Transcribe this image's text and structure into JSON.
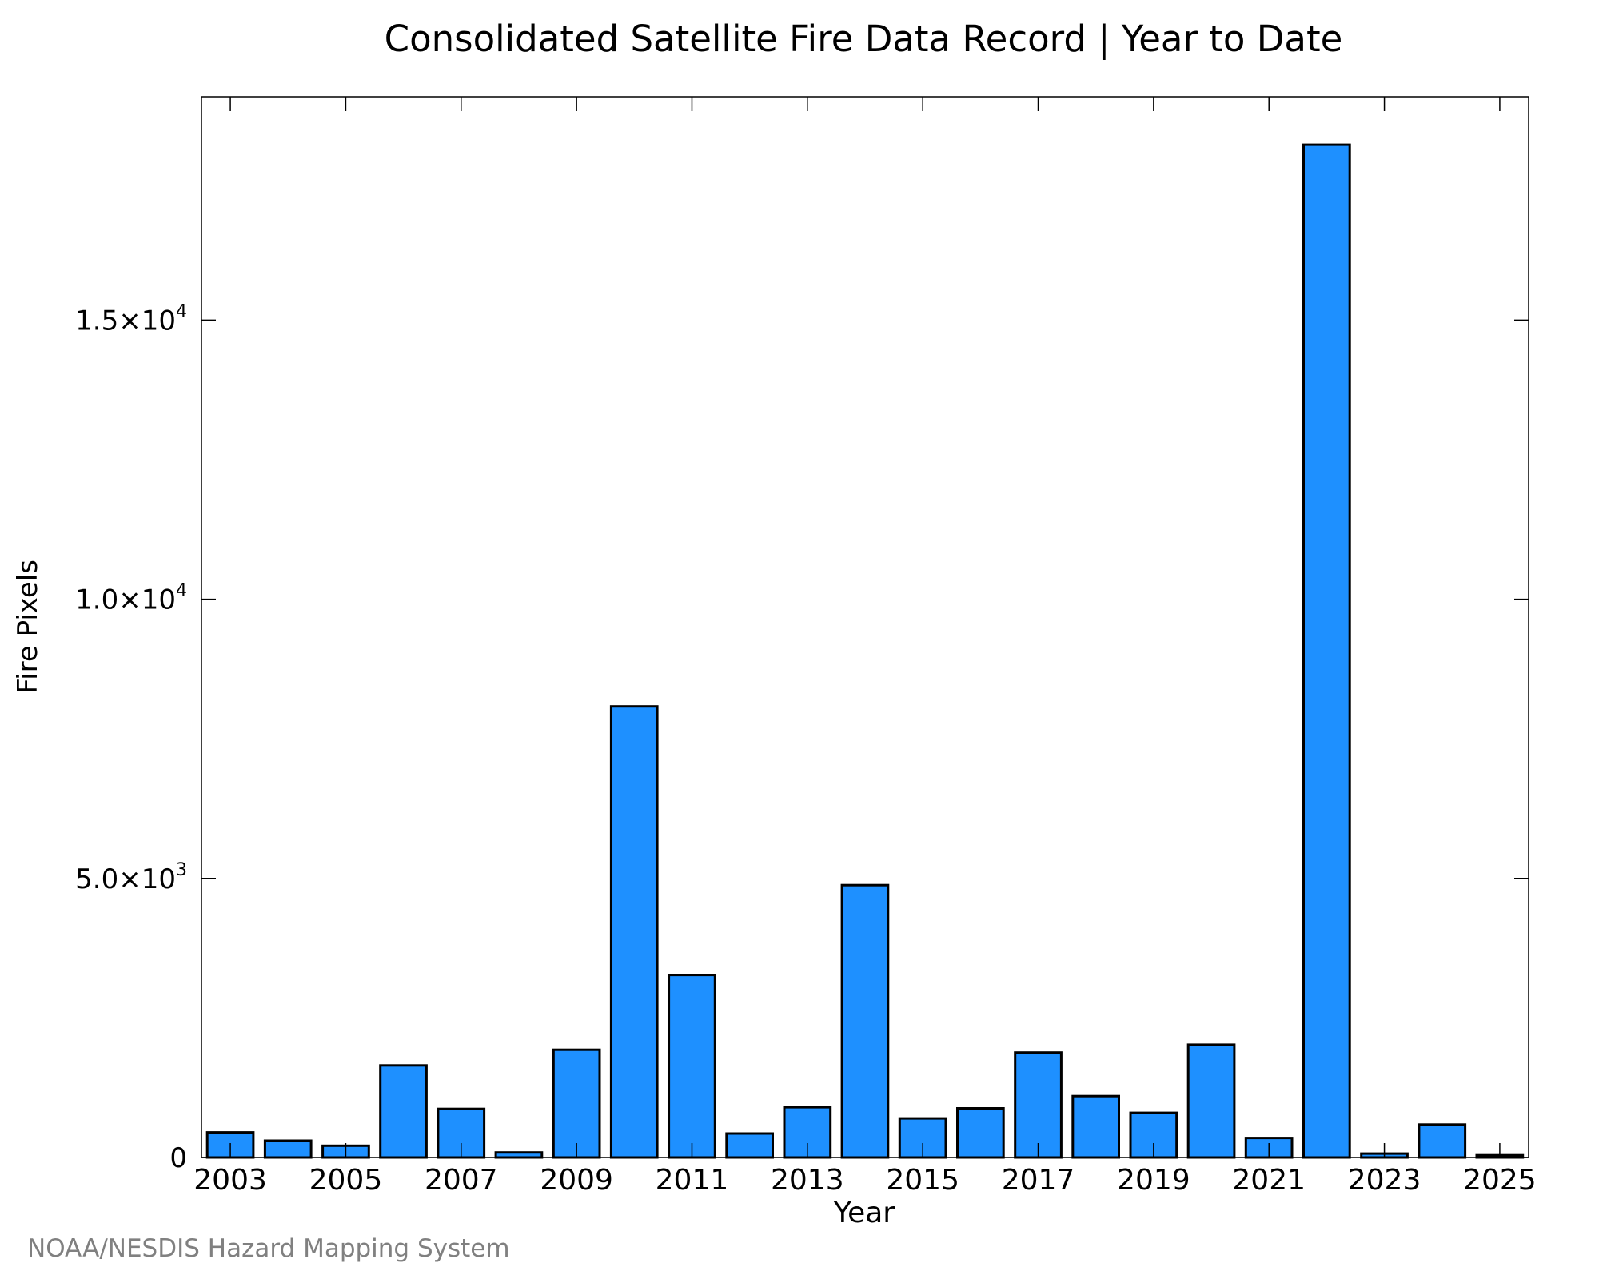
{
  "chart_data": {
    "type": "bar",
    "title": "Consolidated Satellite Fire Data Record | Year to Date",
    "xlabel": "Year",
    "ylabel": "Fire Pixels",
    "categories": [
      "2003",
      "2004",
      "2005",
      "2006",
      "2007",
      "2008",
      "2009",
      "2010",
      "2011",
      "2012",
      "2013",
      "2014",
      "2015",
      "2016",
      "2017",
      "2018",
      "2019",
      "2020",
      "2021",
      "2022",
      "2023",
      "2024",
      "2025"
    ],
    "values": [
      450,
      300,
      210,
      1650,
      870,
      90,
      1930,
      8080,
      3270,
      430,
      900,
      4880,
      700,
      880,
      1880,
      1100,
      800,
      2020,
      350,
      18140,
      70,
      590,
      40
    ],
    "xticks": [
      {
        "value": "2003",
        "label": "2003"
      },
      {
        "value": "2005",
        "label": "2005"
      },
      {
        "value": "2007",
        "label": "2007"
      },
      {
        "value": "2009",
        "label": "2009"
      },
      {
        "value": "2011",
        "label": "2011"
      },
      {
        "value": "2013",
        "label": "2013"
      },
      {
        "value": "2015",
        "label": "2015"
      },
      {
        "value": "2017",
        "label": "2017"
      },
      {
        "value": "2019",
        "label": "2019"
      },
      {
        "value": "2021",
        "label": "2021"
      },
      {
        "value": "2023",
        "label": "2023"
      },
      {
        "value": "2025",
        "label": "2025"
      }
    ],
    "yticks": [
      {
        "value": 0,
        "mantissa": "0",
        "exponent": ""
      },
      {
        "value": 5000,
        "mantissa": "5.0×10",
        "exponent": "3"
      },
      {
        "value": 10000,
        "mantissa": "1.0×10",
        "exponent": "4"
      },
      {
        "value": 15000,
        "mantissa": "1.5×10",
        "exponent": "4"
      }
    ],
    "ylim": [
      0,
      19000
    ],
    "xlim": [
      2002.5,
      2025.5
    ],
    "bar_color": "#1e90ff",
    "edge_color": "#000000",
    "grid": false,
    "legend": "none"
  },
  "credit": "NOAA/NESDIS Hazard Mapping System"
}
